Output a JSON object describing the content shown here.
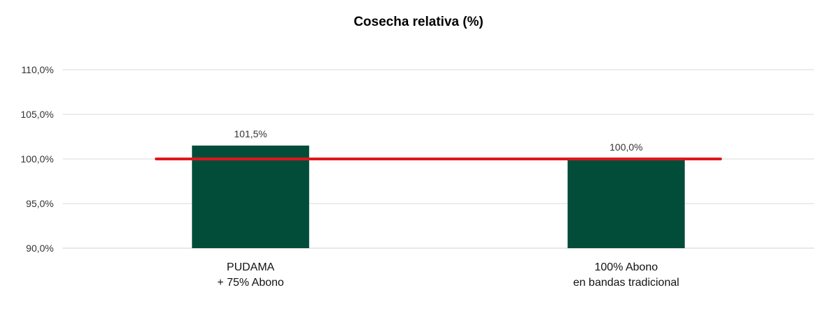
{
  "chart_data": {
    "type": "bar",
    "title": "Cosecha relativa (%)",
    "categories": [
      [
        "PUDAMA",
        "+ 75% Abono"
      ],
      [
        "100% Abono",
        "en bandas tradicional"
      ]
    ],
    "values": [
      101.5,
      100.0
    ],
    "data_labels": [
      "101,5%",
      "100,0%"
    ],
    "ylim": [
      90,
      110
    ],
    "yticks": [
      90,
      95,
      100,
      105,
      110
    ],
    "ytick_labels": [
      "90,0%",
      "95,0%",
      "100,0%",
      "105,0%",
      "110,0%"
    ],
    "reference_line": {
      "value": 100,
      "color": "#e0161b"
    },
    "grid": true,
    "legend": "none",
    "bar_color": "#024d3a"
  }
}
